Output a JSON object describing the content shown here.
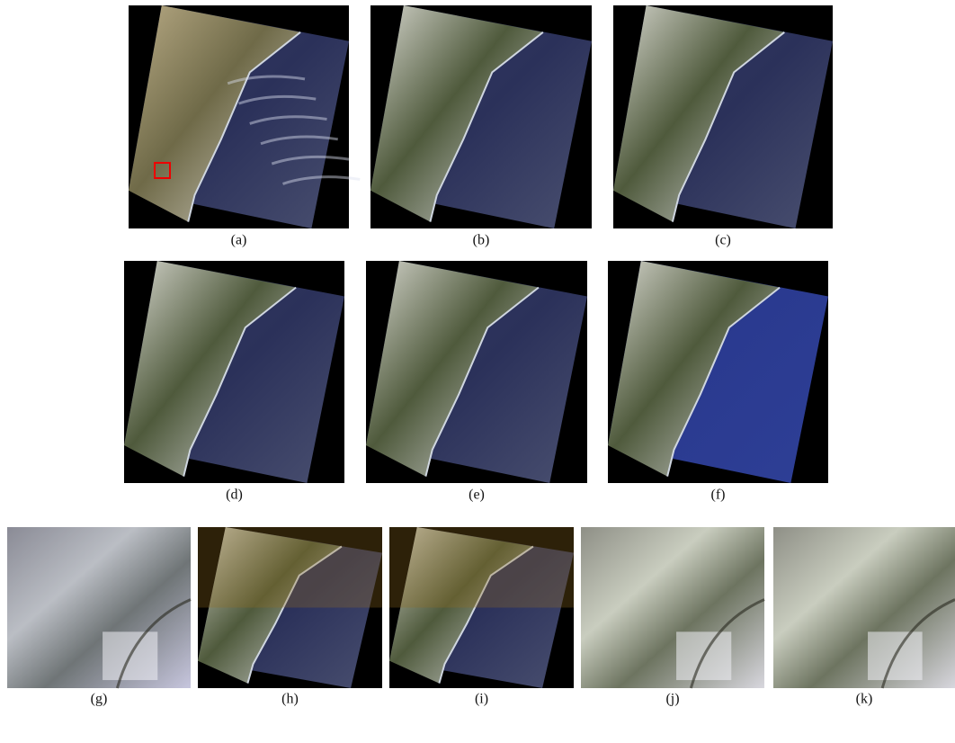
{
  "figure": {
    "panels": [
      {
        "label": "(a)"
      },
      {
        "label": "(b)"
      },
      {
        "label": "(c)"
      },
      {
        "label": "(d)"
      },
      {
        "label": "(e)"
      },
      {
        "label": "(f)"
      },
      {
        "label": "(g)"
      },
      {
        "label": "(h)"
      },
      {
        "label": "(i)"
      },
      {
        "label": "(j)"
      },
      {
        "label": "(k)"
      }
    ]
  }
}
